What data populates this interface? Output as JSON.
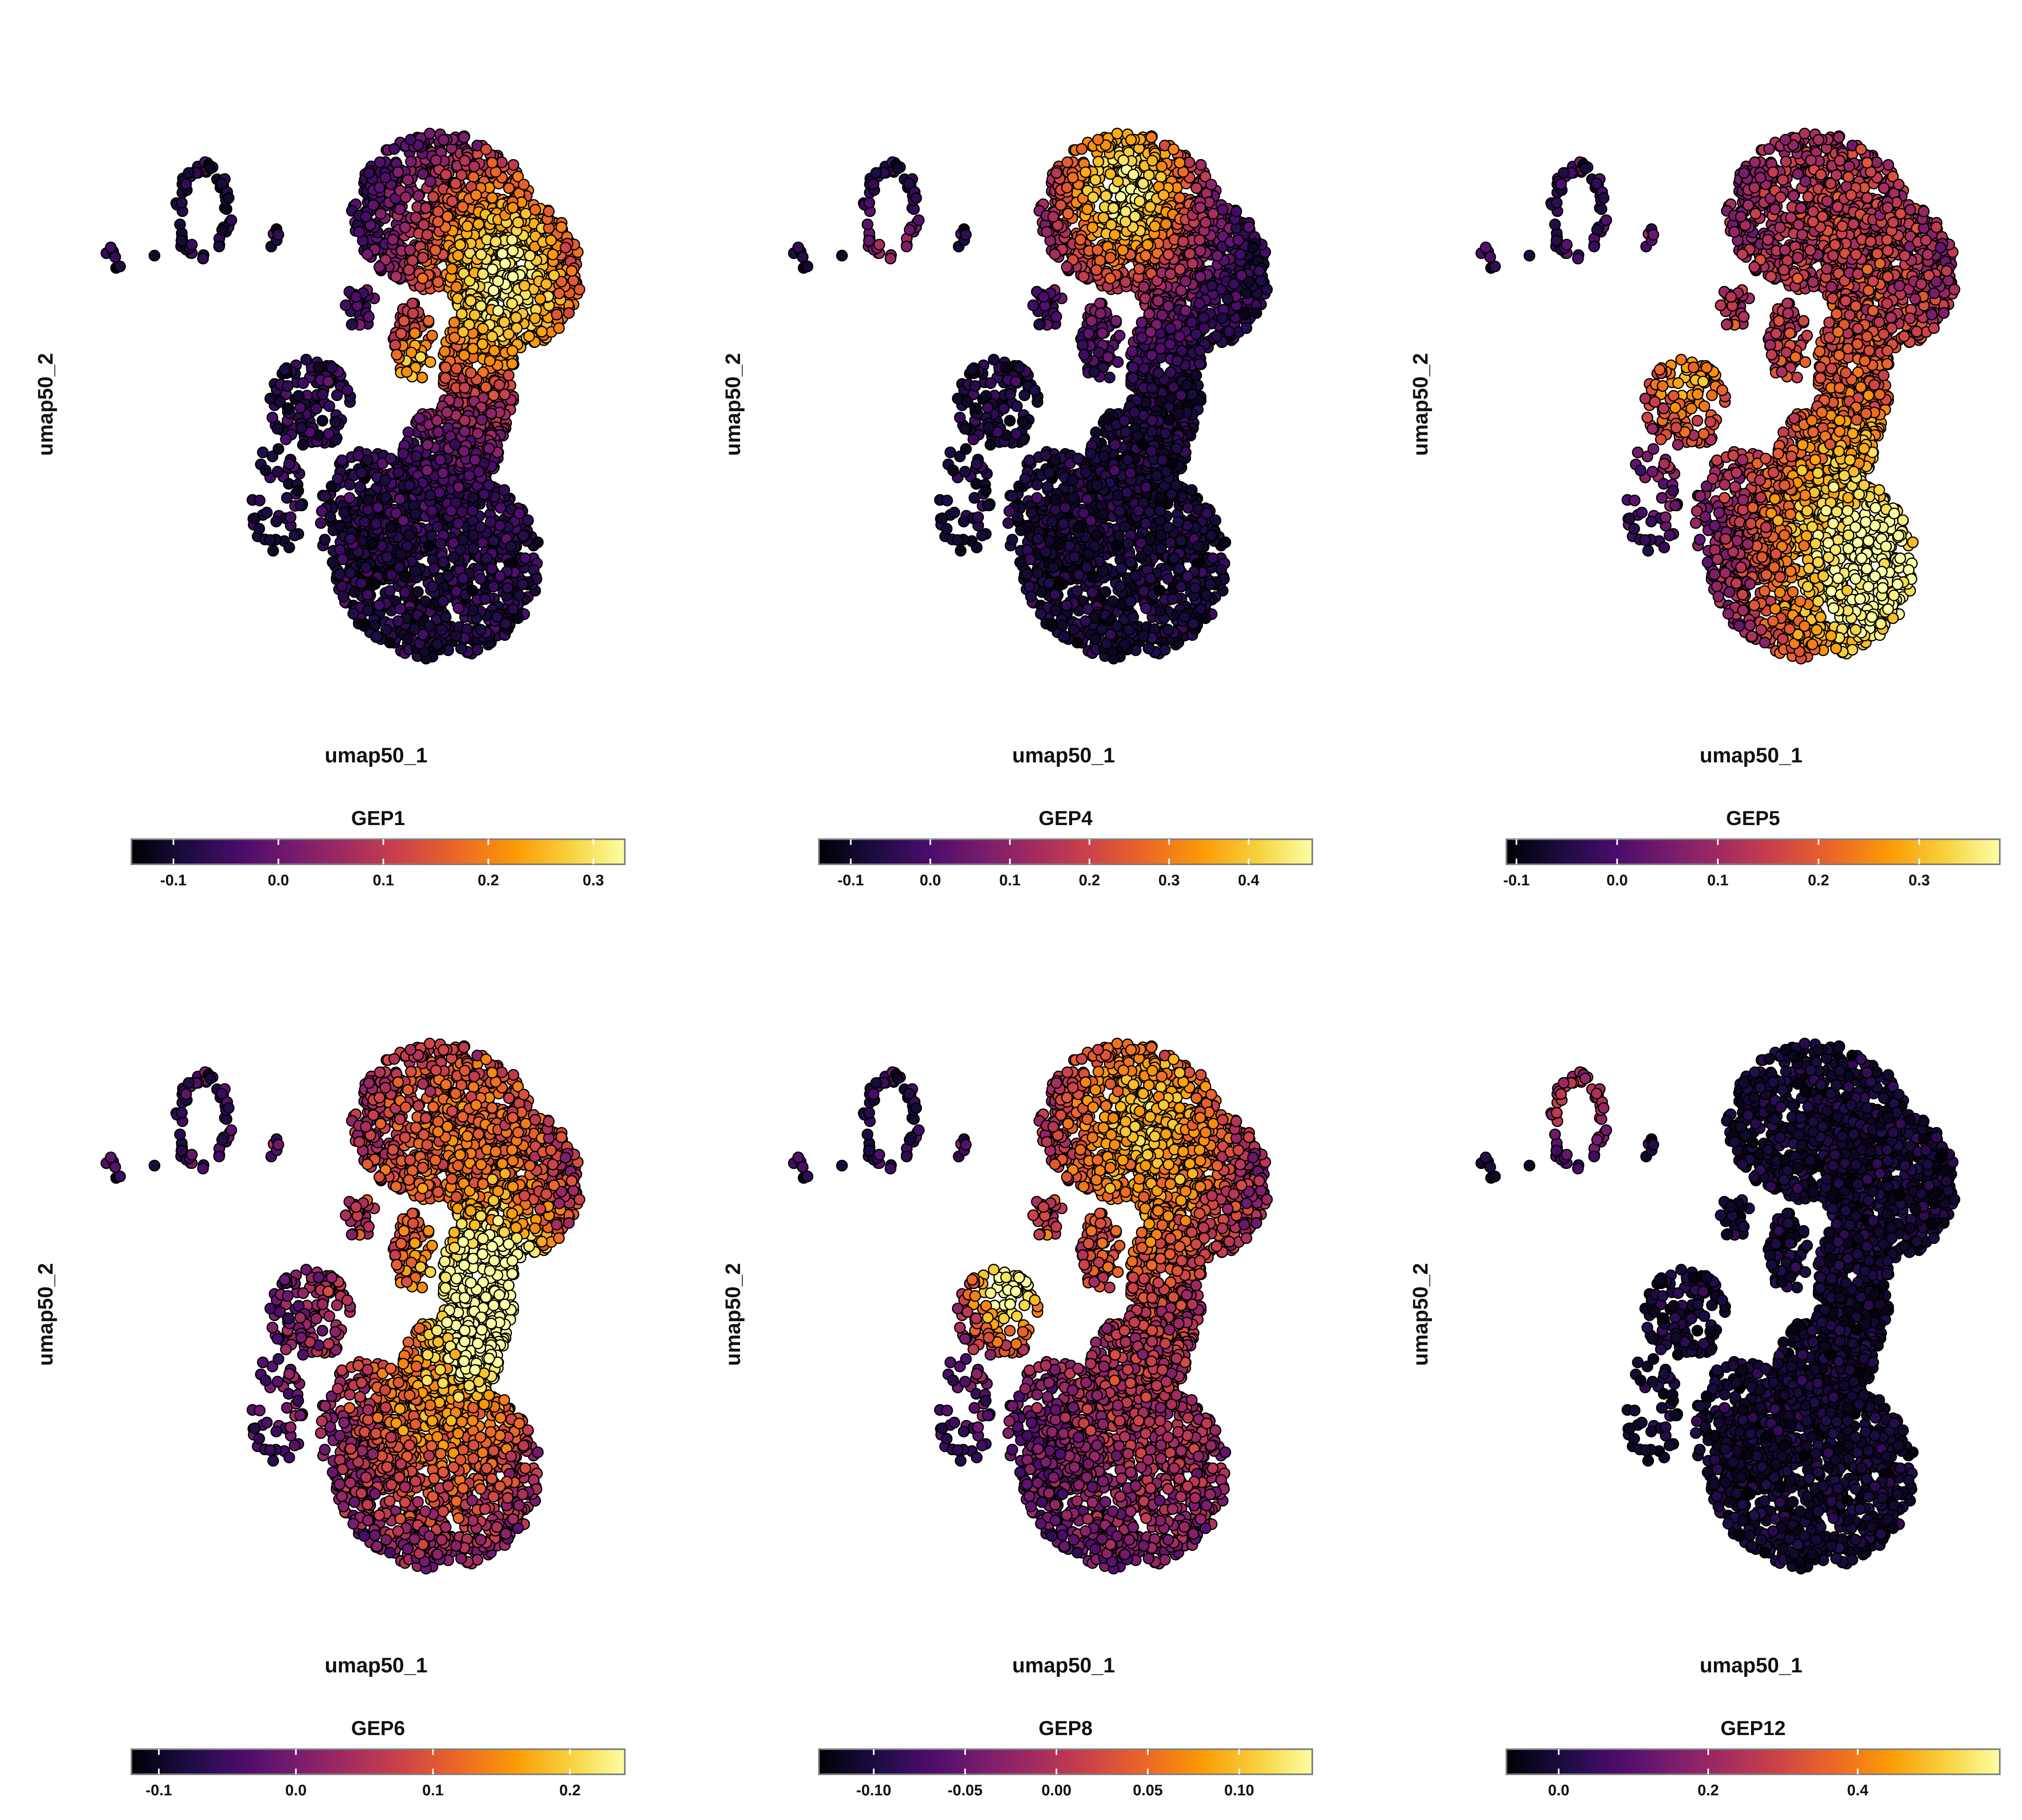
{
  "chart_data": [
    {
      "type": "scatter",
      "xlabel": "umap50_1",
      "ylabel": "umap50_2",
      "legend": {
        "title": "GEP1",
        "position": "bottom",
        "range": [
          -0.14,
          0.33
        ],
        "ticks": [
          -0.1,
          0.0,
          0.1,
          0.2,
          0.3
        ],
        "tick_labels": [
          "-0.1",
          "0.0",
          "0.1",
          "0.2",
          "0.3"
        ]
      },
      "hotspots": [
        {
          "x": 0.63,
          "y": 0.72,
          "weight": 1.0,
          "spread": 0.17
        },
        {
          "x": 0.4,
          "y": 0.56,
          "weight": 0.55,
          "spread": 0.05
        }
      ],
      "base_level": 0.22
    },
    {
      "type": "scatter",
      "xlabel": "umap50_1",
      "ylabel": "umap50_2",
      "legend": {
        "title": "GEP4",
        "position": "bottom",
        "range": [
          -0.14,
          0.48
        ],
        "ticks": [
          -0.1,
          0.0,
          0.1,
          0.2,
          0.3,
          0.4
        ],
        "tick_labels": [
          "-0.1",
          "0.0",
          "0.1",
          "0.2",
          "0.3",
          "0.4"
        ]
      },
      "hotspots": [
        {
          "x": 0.47,
          "y": 0.88,
          "weight": 1.0,
          "spread": 0.14
        },
        {
          "x": -0.1,
          "y": 0.8,
          "weight": 0.45,
          "spread": 0.05
        }
      ],
      "base_level": 0.15
    },
    {
      "type": "scatter",
      "xlabel": "umap50_1",
      "ylabel": "umap50_2",
      "legend": {
        "title": "GEP5",
        "position": "bottom",
        "range": [
          -0.11,
          0.38
        ],
        "ticks": [
          -0.1,
          0.0,
          0.1,
          0.2,
          0.3
        ],
        "tick_labels": [
          "-0.1",
          "0.0",
          "0.1",
          "0.2",
          "0.3"
        ]
      },
      "hotspots": [
        {
          "x": 0.62,
          "y": 0.2,
          "weight": 1.0,
          "spread": 0.22
        },
        {
          "x": 0.55,
          "y": 0.8,
          "weight": 0.4,
          "spread": 0.3
        },
        {
          "x": 0.15,
          "y": 0.55,
          "weight": 0.55,
          "spread": 0.1
        }
      ],
      "base_level": 0.3
    },
    {
      "type": "scatter",
      "xlabel": "umap50_1",
      "ylabel": "umap50_2",
      "legend": {
        "title": "GEP6",
        "position": "bottom",
        "range": [
          -0.12,
          0.24
        ],
        "ticks": [
          -0.1,
          0.0,
          0.1,
          0.2
        ],
        "tick_labels": [
          "-0.1",
          "0.0",
          "0.1",
          "0.2"
        ]
      },
      "hotspots": [
        {
          "x": 0.62,
          "y": 0.52,
          "weight": 1.0,
          "spread": 0.09
        },
        {
          "x": 0.55,
          "y": 0.78,
          "weight": 0.55,
          "spread": 0.28
        },
        {
          "x": 0.48,
          "y": 0.3,
          "weight": 0.5,
          "spread": 0.2
        }
      ],
      "base_level": 0.35
    },
    {
      "type": "scatter",
      "xlabel": "umap50_1",
      "ylabel": "umap50_2",
      "legend": {
        "title": "GEP8",
        "position": "bottom",
        "range": [
          -0.13,
          0.14
        ],
        "ticks": [
          -0.1,
          -0.05,
          0.0,
          0.05,
          0.1
        ],
        "tick_labels": [
          "-0.10",
          "-0.05",
          "0.00",
          "0.05",
          "0.10"
        ]
      },
      "hotspots": [
        {
          "x": 0.18,
          "y": 0.55,
          "weight": 0.9,
          "spread": 0.08
        },
        {
          "x": 0.52,
          "y": 0.84,
          "weight": 0.75,
          "spread": 0.2
        },
        {
          "x": 0.55,
          "y": 0.3,
          "weight": 0.35,
          "spread": 0.25
        }
      ],
      "base_level": 0.3
    },
    {
      "type": "scatter",
      "xlabel": "umap50_1",
      "ylabel": "umap50_2",
      "legend": {
        "title": "GEP12",
        "position": "bottom",
        "range": [
          -0.07,
          0.59
        ],
        "ticks": [
          0.0,
          0.2,
          0.4
        ],
        "tick_labels": [
          "0.0",
          "0.2",
          "0.4"
        ]
      },
      "hotspots": [
        {
          "x": -0.1,
          "y": 0.86,
          "weight": 0.85,
          "spread": 0.05
        }
      ],
      "base_level": 0.1
    }
  ],
  "colormap": [
    "#000004",
    "#1b0c41",
    "#4a0c6b",
    "#781c6d",
    "#a52c60",
    "#cf4446",
    "#ed6925",
    "#fb9b06",
    "#f7d13d",
    "#fcffa4"
  ],
  "point_outline_color": "#000000"
}
